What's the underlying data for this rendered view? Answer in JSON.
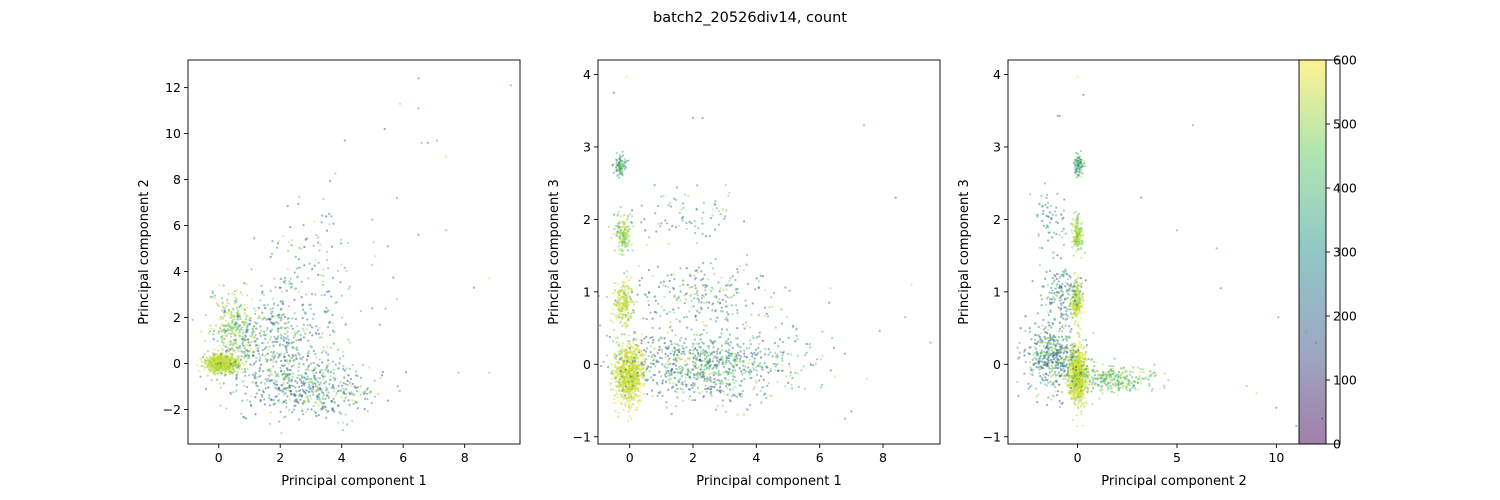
{
  "figure": {
    "title": "batch2_20526div14, count"
  },
  "colorbar": {
    "min": 0,
    "max": 600,
    "ticks": [
      0,
      100,
      200,
      300,
      400,
      500,
      600
    ],
    "colors": [
      "#440154",
      "#3b528b",
      "#21918c",
      "#5ec962",
      "#fde725"
    ],
    "alpha": 0.5
  },
  "chart_data": [
    {
      "type": "scatter",
      "title": "",
      "xlabel": "Principal component 1",
      "ylabel": "Principal component 2",
      "xlim": [
        -1,
        9.8
      ],
      "ylim": [
        -3.5,
        13.2
      ],
      "xticks": [
        0,
        2,
        4,
        6,
        8
      ],
      "yticks": [
        -2,
        0,
        2,
        4,
        6,
        8,
        10,
        12
      ],
      "color_by": "count",
      "clusters": [
        {
          "center": [
            0.1,
            0.0
          ],
          "spread": [
            0.25,
            0.18
          ],
          "n": 700,
          "hue": [
            480,
            600
          ]
        },
        {
          "center": [
            0.5,
            1.6
          ],
          "spread": [
            0.35,
            0.8
          ],
          "n": 300,
          "hue": [
            350,
            600
          ]
        },
        {
          "center": [
            1.8,
            0.5
          ],
          "spread": [
            1.0,
            1.2
          ],
          "n": 550,
          "hue": [
            100,
            550
          ]
        },
        {
          "center": [
            3.2,
            -1.2
          ],
          "spread": [
            0.9,
            0.6
          ],
          "n": 400,
          "hue": [
            100,
            550
          ]
        },
        {
          "center": [
            2.8,
            3.5
          ],
          "spread": [
            0.9,
            1.8
          ],
          "n": 170,
          "hue": [
            100,
            550
          ]
        }
      ],
      "points": [
        {
          "x": 6.5,
          "y": 12.4,
          "c": 200
        },
        {
          "x": 9.5,
          "y": 12.1,
          "c": 320
        },
        {
          "x": 6.5,
          "y": 11.1,
          "c": 330
        },
        {
          "x": 5.9,
          "y": 11.3,
          "c": 500
        },
        {
          "x": 5.4,
          "y": 10.2,
          "c": 150
        },
        {
          "x": 4.1,
          "y": 9.7,
          "c": 150
        },
        {
          "x": 7.1,
          "y": 9.7,
          "c": 350
        },
        {
          "x": 6.6,
          "y": 9.6,
          "c": 350
        },
        {
          "x": 6.8,
          "y": 9.6,
          "c": 150
        },
        {
          "x": 7.4,
          "y": 9.0,
          "c": 550
        },
        {
          "x": 5.8,
          "y": 7.2,
          "c": 330
        },
        {
          "x": 8.8,
          "y": 3.7,
          "c": 550
        },
        {
          "x": 8.3,
          "y": 3.3,
          "c": 200
        },
        {
          "x": 7.8,
          "y": -0.4,
          "c": 400
        },
        {
          "x": 8.8,
          "y": -0.4,
          "c": 450
        },
        {
          "x": 5.5,
          "y": 5.1,
          "c": 150
        },
        {
          "x": 6.5,
          "y": 5.6,
          "c": 150
        },
        {
          "x": 7.4,
          "y": 5.8,
          "c": 350
        },
        {
          "x": 5.8,
          "y": 2.8,
          "c": 450
        }
      ]
    },
    {
      "type": "scatter",
      "title": "",
      "xlabel": "Principal component 1",
      "ylabel": "Principal component 3",
      "xlim": [
        -1,
        9.8
      ],
      "ylim": [
        -1.1,
        4.2
      ],
      "xticks": [
        0,
        2,
        4,
        6,
        8
      ],
      "yticks": [
        -1,
        0,
        1,
        2,
        3,
        4
      ],
      "color_by": "count",
      "clusters": [
        {
          "center": [
            0.0,
            -0.15
          ],
          "spread": [
            0.22,
            0.2
          ],
          "n": 800,
          "hue": [
            500,
            600
          ]
        },
        {
          "center": [
            2.4,
            0.0
          ],
          "spread": [
            1.5,
            0.25
          ],
          "n": 900,
          "hue": [
            100,
            560
          ]
        },
        {
          "center": [
            -0.2,
            0.85
          ],
          "spread": [
            0.15,
            0.15
          ],
          "n": 220,
          "hue": [
            480,
            600
          ]
        },
        {
          "center": [
            2.2,
            0.9
          ],
          "spread": [
            1.2,
            0.25
          ],
          "n": 250,
          "hue": [
            100,
            550
          ]
        },
        {
          "center": [
            -0.2,
            1.8
          ],
          "spread": [
            0.12,
            0.12
          ],
          "n": 160,
          "hue": [
            400,
            600
          ]
        },
        {
          "center": [
            1.8,
            2.05
          ],
          "spread": [
            0.9,
            0.2
          ],
          "n": 80,
          "hue": [
            100,
            550
          ]
        },
        {
          "center": [
            -0.3,
            2.75
          ],
          "spread": [
            0.1,
            0.08
          ],
          "n": 90,
          "hue": [
            200,
            550
          ]
        }
      ],
      "points": [
        {
          "x": -0.5,
          "y": 3.75,
          "c": 150
        },
        {
          "x": -0.1,
          "y": 3.97,
          "c": 580
        },
        {
          "x": 2.0,
          "y": 3.4,
          "c": 200
        },
        {
          "x": 2.3,
          "y": 3.4,
          "c": 200
        },
        {
          "x": 7.4,
          "y": 3.3,
          "c": 350
        },
        {
          "x": 8.4,
          "y": 2.3,
          "c": 150
        },
        {
          "x": 8.9,
          "y": 1.1,
          "c": 550
        },
        {
          "x": 9.5,
          "y": 0.3,
          "c": 350
        },
        {
          "x": 7.5,
          "y": -0.2,
          "c": 550
        },
        {
          "x": 6.8,
          "y": -0.75,
          "c": 300
        },
        {
          "x": 7.0,
          "y": -0.65,
          "c": 200
        },
        {
          "x": 6.3,
          "y": 0.85,
          "c": 150
        },
        {
          "x": 8.7,
          "y": 0.65,
          "c": 350
        }
      ]
    },
    {
      "type": "scatter",
      "title": "",
      "xlabel": "Principal component 2",
      "ylabel": "Principal component 3",
      "xlim": [
        -3.5,
        13.2
      ],
      "ylim": [
        -1.1,
        4.2
      ],
      "xticks": [
        0,
        5,
        10
      ],
      "yticks": [
        -1,
        0,
        1,
        2,
        3,
        4
      ],
      "color_by": "count",
      "clusters": [
        {
          "center": [
            0.0,
            -0.15
          ],
          "spread": [
            0.22,
            0.2
          ],
          "n": 800,
          "hue": [
            500,
            600
          ]
        },
        {
          "center": [
            -1.2,
            0.1
          ],
          "spread": [
            0.7,
            0.25
          ],
          "n": 500,
          "hue": [
            100,
            560
          ]
        },
        {
          "center": [
            1.8,
            -0.2
          ],
          "spread": [
            1.0,
            0.1
          ],
          "n": 300,
          "hue": [
            300,
            580
          ]
        },
        {
          "center": [
            -0.05,
            0.85
          ],
          "spread": [
            0.15,
            0.15
          ],
          "n": 220,
          "hue": [
            480,
            600
          ]
        },
        {
          "center": [
            -0.8,
            1.0
          ],
          "spread": [
            0.5,
            0.2
          ],
          "n": 150,
          "hue": [
            100,
            500
          ]
        },
        {
          "center": [
            0.0,
            1.8
          ],
          "spread": [
            0.12,
            0.12
          ],
          "n": 160,
          "hue": [
            400,
            600
          ]
        },
        {
          "center": [
            -1.3,
            2.0
          ],
          "spread": [
            0.4,
            0.2
          ],
          "n": 60,
          "hue": [
            100,
            500
          ]
        },
        {
          "center": [
            0.05,
            2.75
          ],
          "spread": [
            0.1,
            0.08
          ],
          "n": 90,
          "hue": [
            200,
            550
          ]
        }
      ],
      "points": [
        {
          "x": 0.0,
          "y": 3.97,
          "c": 580
        },
        {
          "x": 0.3,
          "y": 3.72,
          "c": 150
        },
        {
          "x": -1.0,
          "y": 3.43,
          "c": 200
        },
        {
          "x": -0.9,
          "y": 3.43,
          "c": 200
        },
        {
          "x": 5.8,
          "y": 3.3,
          "c": 350
        },
        {
          "x": 3.2,
          "y": 2.3,
          "c": 150
        },
        {
          "x": 5.0,
          "y": 1.85,
          "c": 330
        },
        {
          "x": 7.0,
          "y": 1.6,
          "c": 350
        },
        {
          "x": 7.2,
          "y": 1.05,
          "c": 200
        },
        {
          "x": 10.1,
          "y": 0.65,
          "c": 350
        },
        {
          "x": 11.5,
          "y": 0.45,
          "c": 550
        },
        {
          "x": 12.0,
          "y": 0.3,
          "c": 350
        },
        {
          "x": 10.0,
          "y": -0.6,
          "c": 200
        },
        {
          "x": 11.0,
          "y": -0.85,
          "c": 300
        },
        {
          "x": 12.3,
          "y": -0.75,
          "c": 200
        },
        {
          "x": 9.0,
          "y": -0.4,
          "c": 550
        },
        {
          "x": 8.5,
          "y": -0.3,
          "c": 450
        }
      ]
    }
  ]
}
